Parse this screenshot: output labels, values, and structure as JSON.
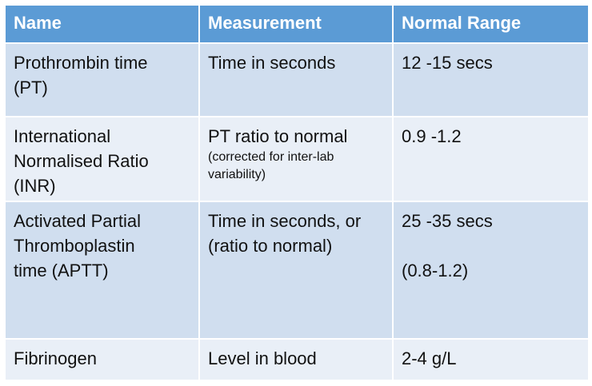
{
  "table": {
    "header": [
      "Name",
      "Measurement",
      "Normal Range"
    ],
    "rows": [
      [
        {
          "lines": [
            "Prothrombin time",
            "(PT)"
          ]
        },
        {
          "lines": [
            "Time in seconds"
          ]
        },
        {
          "lines": [
            "12 -15 secs"
          ]
        }
      ],
      [
        {
          "lines": [
            "International",
            "Normalised Ratio",
            "(INR)"
          ]
        },
        {
          "lines": [
            "PT ratio to normal"
          ],
          "note": "(corrected for inter-lab variability)"
        },
        {
          "lines": [
            "0.9 -1.2"
          ]
        }
      ],
      [
        {
          "lines": [
            "Activated Partial",
            "Thromboplastin",
            "time (APTT)"
          ]
        },
        {
          "lines": [
            "Time in seconds, or",
            "(ratio to normal)"
          ]
        },
        {
          "lines": [
            "25 -35 secs",
            "(0.8-1.2)"
          ]
        }
      ],
      [
        {
          "lines": [
            "Fibrinogen"
          ]
        },
        {
          "lines": [
            "Level in blood"
          ]
        },
        {
          "lines": [
            "2-4 g/L"
          ]
        }
      ]
    ]
  }
}
